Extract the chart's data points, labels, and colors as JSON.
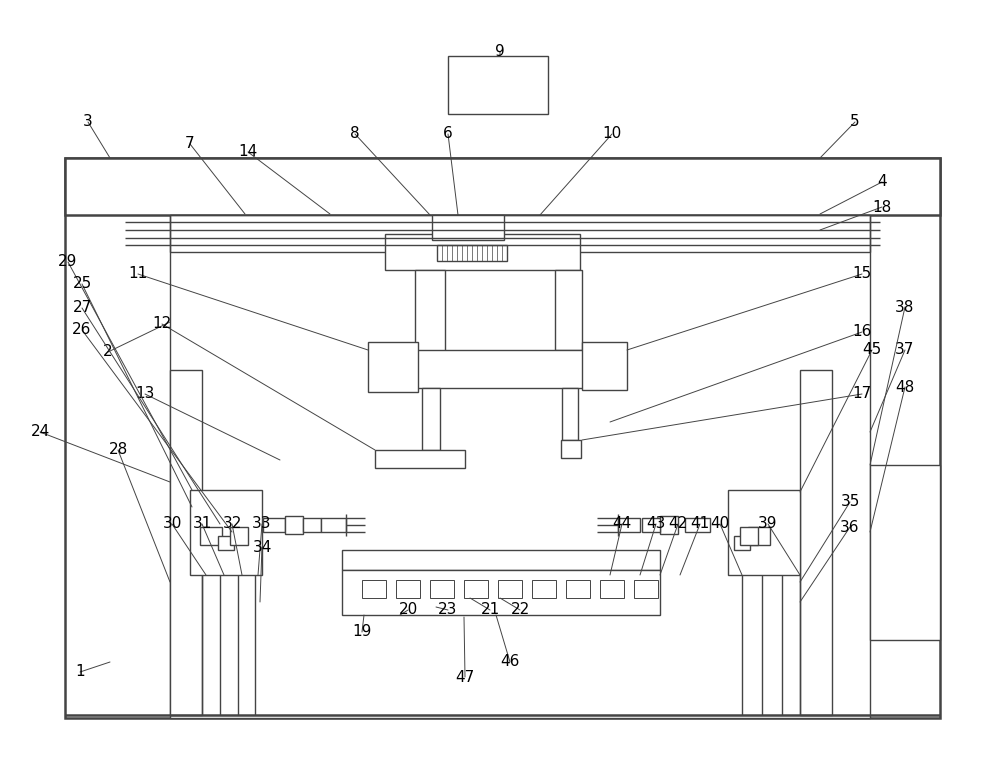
{
  "bg_color": "#ffffff",
  "lc": "#444444",
  "lw": 1.0,
  "tlw": 1.8,
  "fig_w": 10.0,
  "fig_h": 7.82,
  "dpi": 100
}
